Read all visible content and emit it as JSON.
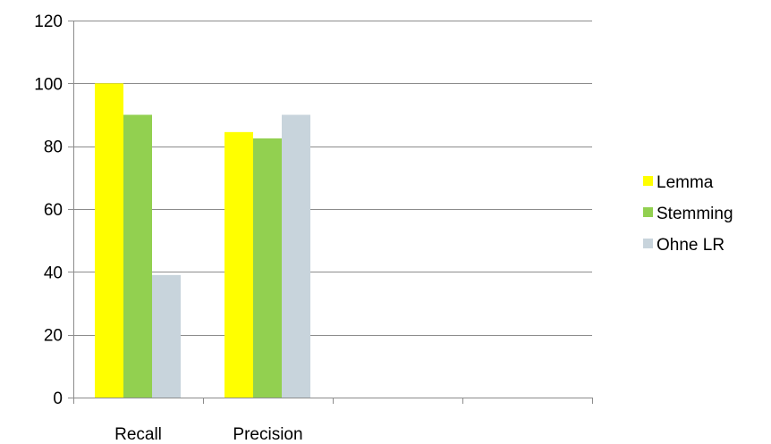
{
  "chart_data": {
    "type": "bar",
    "categories": [
      "Recall",
      "Precision",
      "",
      ""
    ],
    "series": [
      {
        "name": "Lemma",
        "values": [
          100,
          84.5,
          null,
          null
        ],
        "color": "#ffff00"
      },
      {
        "name": "Stemming",
        "values": [
          90,
          82.5,
          null,
          null
        ],
        "color": "#92d050"
      },
      {
        "name": "Ohne LR",
        "values": [
          39,
          90,
          null,
          null
        ],
        "color": "#c8d4dc"
      }
    ],
    "ylim": [
      0,
      120
    ],
    "yticks": [
      0,
      20,
      40,
      60,
      80,
      100,
      120
    ],
    "ytick_labels": [
      "0",
      "20",
      "40",
      "60",
      "80",
      "100",
      "120"
    ],
    "grid": true,
    "legend_position": "right",
    "title": "",
    "xlabel": "",
    "ylabel": ""
  }
}
